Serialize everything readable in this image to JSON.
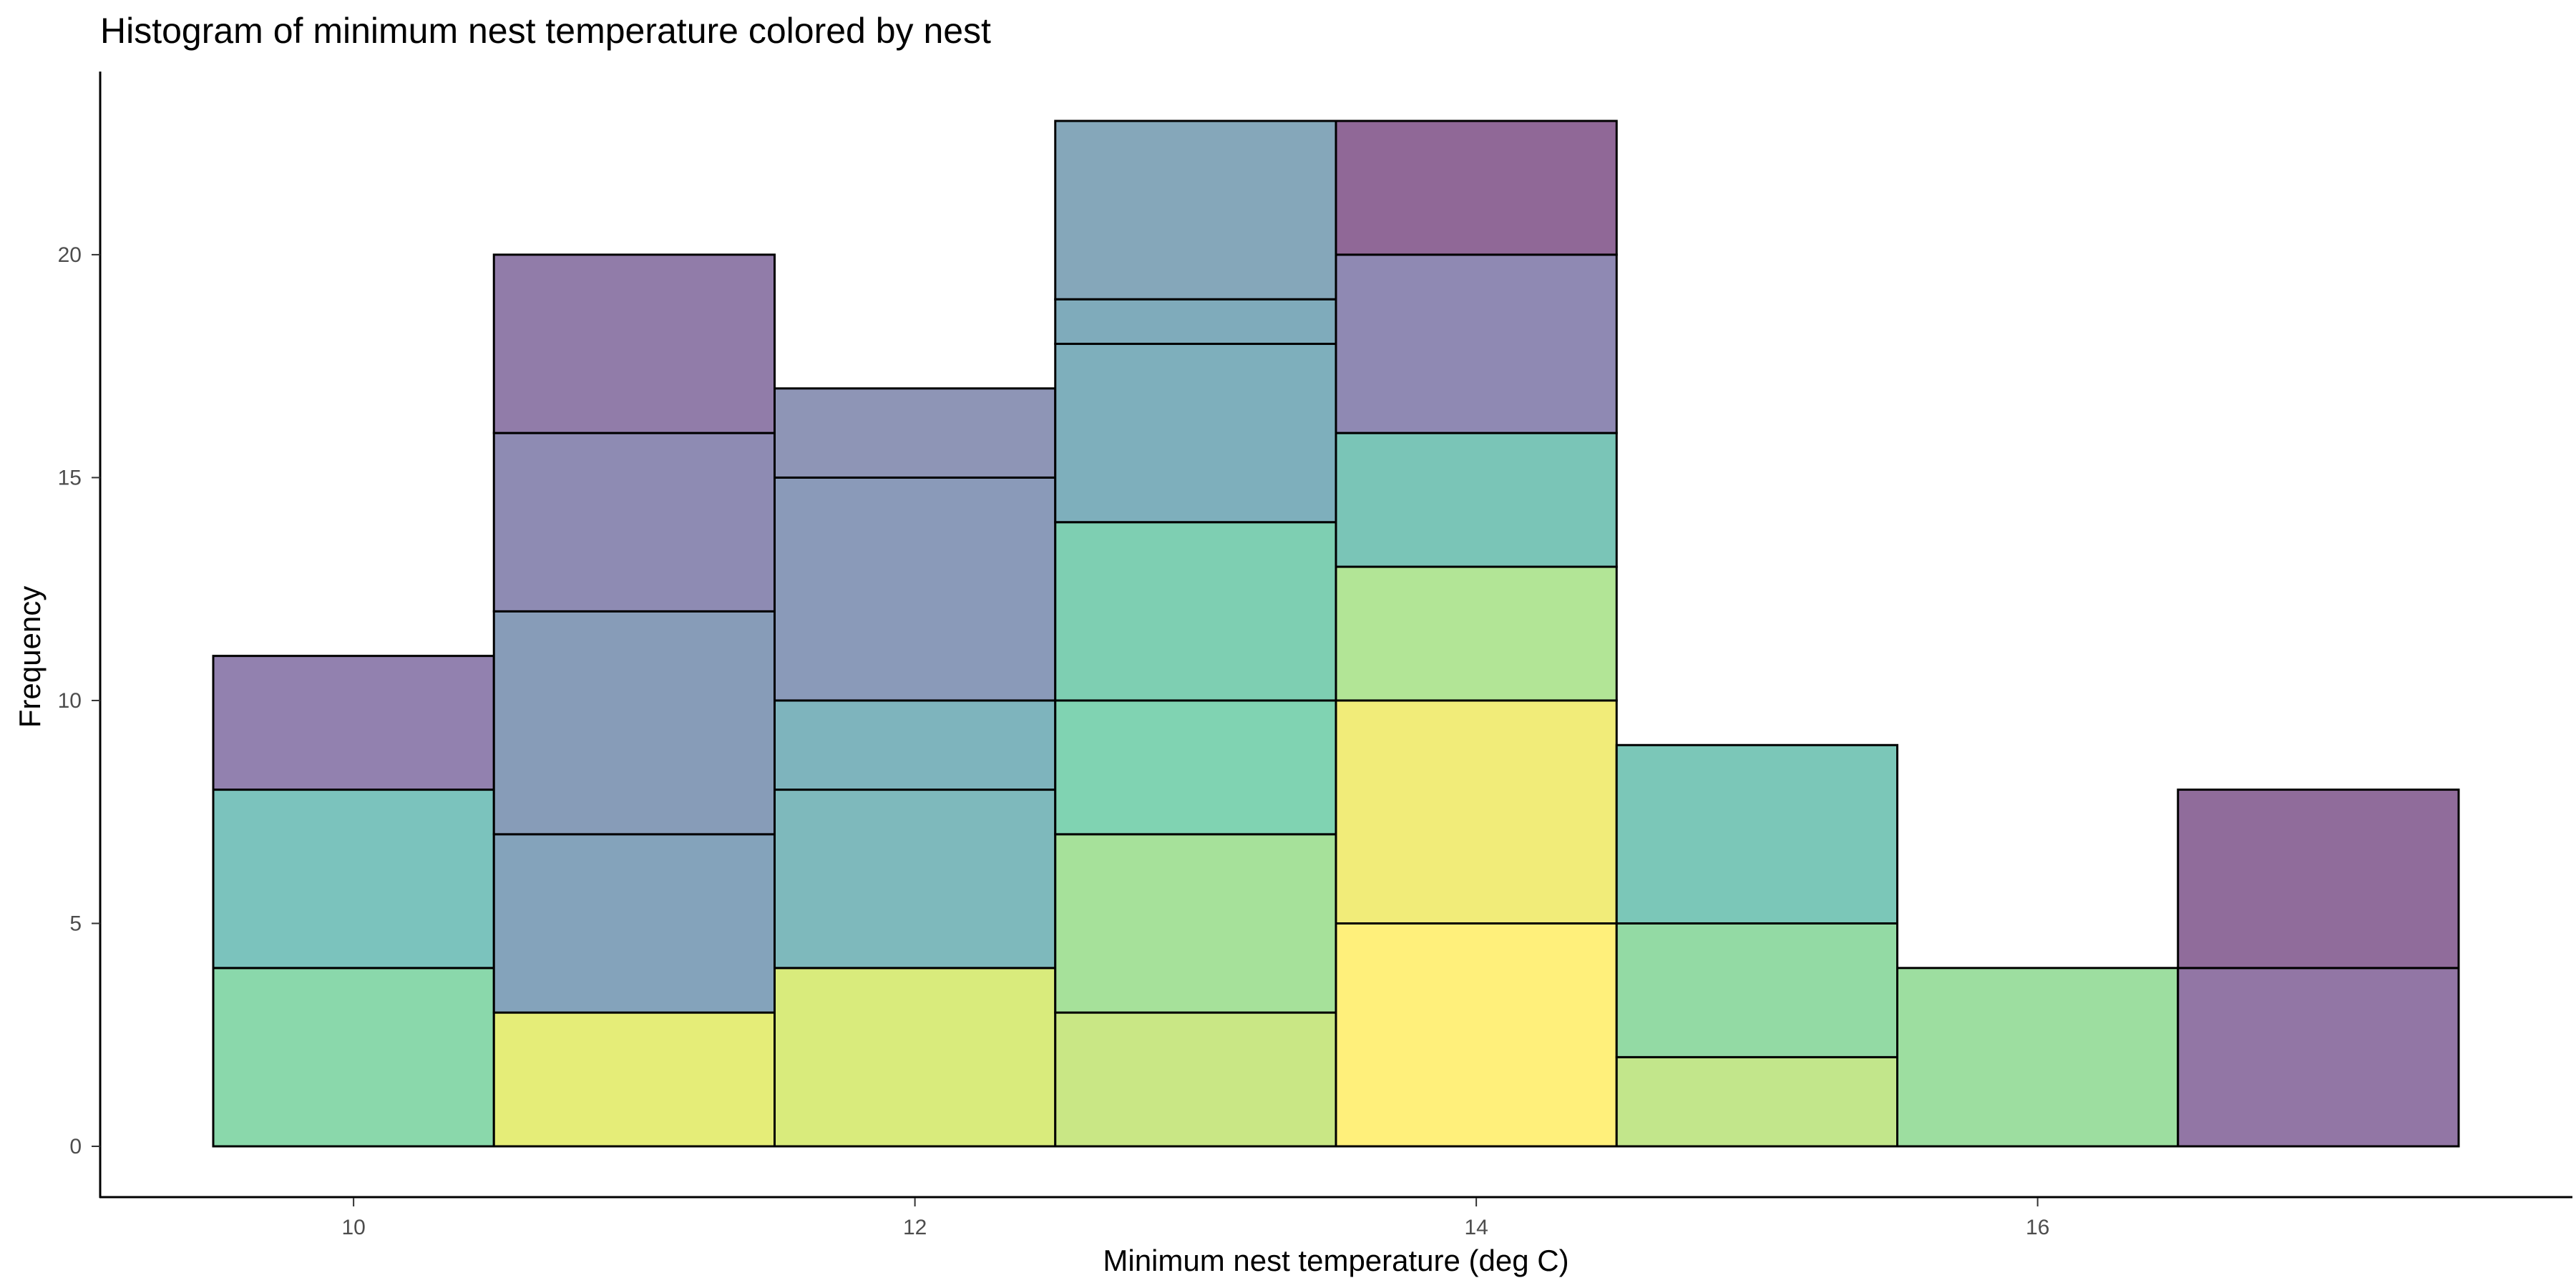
{
  "chart_data": {
    "type": "bar",
    "title": "Histogram of minimum nest temperature colored by nest",
    "xlabel": "Minimum nest temperature (deg C)",
    "ylabel": "Frequency",
    "stacked": true,
    "xlim": [
      9.5,
      17.5
    ],
    "ylim": [
      0,
      23
    ],
    "xticks": [
      10,
      12,
      14,
      16
    ],
    "yticks": [
      0,
      5,
      10,
      15,
      20
    ],
    "grid": false,
    "legend": "none",
    "bins": [
      {
        "x0": 9.5,
        "x1": 10.5,
        "total": 11,
        "segments": [
          {
            "count": 4,
            "color": "#8ad8ab"
          },
          {
            "count": 4,
            "color": "#7bc3bd"
          },
          {
            "count": 3,
            "color": "#9281af"
          }
        ]
      },
      {
        "x0": 10.5,
        "x1": 11.5,
        "total": 20,
        "segments": [
          {
            "count": 3,
            "color": "#e5ed78"
          },
          {
            "count": 4,
            "color": "#84a3bb"
          },
          {
            "count": 5,
            "color": "#879cb8"
          },
          {
            "count": 4,
            "color": "#8e8bb3"
          },
          {
            "count": 4,
            "color": "#917ca9"
          }
        ]
      },
      {
        "x0": 11.5,
        "x1": 12.5,
        "total": 17,
        "segments": [
          {
            "count": 4,
            "color": "#d9eb7c"
          },
          {
            "count": 4,
            "color": "#7eb9bc"
          },
          {
            "count": 2,
            "color": "#7eb4bd"
          },
          {
            "count": 5,
            "color": "#8a9ab9"
          },
          {
            "count": 2,
            "color": "#8e95b6"
          }
        ]
      },
      {
        "x0": 12.5,
        "x1": 13.5,
        "total": 23,
        "segments": [
          {
            "count": 3,
            "color": "#c9e785"
          },
          {
            "count": 4,
            "color": "#a6e19a"
          },
          {
            "count": 3,
            "color": "#80d3b2"
          },
          {
            "count": 4,
            "color": "#7ecfb2"
          },
          {
            "count": 4,
            "color": "#7eafbc"
          },
          {
            "count": 1,
            "color": "#7fabbb"
          },
          {
            "count": 4,
            "color": "#85a7ba"
          }
        ]
      },
      {
        "x0": 13.5,
        "x1": 14.5,
        "total": 23,
        "segments": [
          {
            "count": 5,
            "color": "#fff07b"
          },
          {
            "count": 5,
            "color": "#f1ec79"
          },
          {
            "count": 3,
            "color": "#b2e596"
          },
          {
            "count": 3,
            "color": "#7ac5b7"
          },
          {
            "count": 4,
            "color": "#8f89b3"
          },
          {
            "count": 3,
            "color": "#906897"
          }
        ]
      },
      {
        "x0": 14.5,
        "x1": 15.5,
        "total": 9,
        "segments": [
          {
            "count": 2,
            "color": "#c2e68b"
          },
          {
            "count": 3,
            "color": "#93daa4"
          },
          {
            "count": 4,
            "color": "#7bc7b8"
          }
        ]
      },
      {
        "x0": 15.5,
        "x1": 16.5,
        "total": 4,
        "segments": [
          {
            "count": 4,
            "color": "#9ddea0"
          }
        ]
      },
      {
        "x0": 16.5,
        "x1": 17.5,
        "total": 8,
        "segments": [
          {
            "count": 4,
            "color": "#9276a5"
          },
          {
            "count": 4,
            "color": "#906c9b"
          }
        ]
      }
    ]
  }
}
